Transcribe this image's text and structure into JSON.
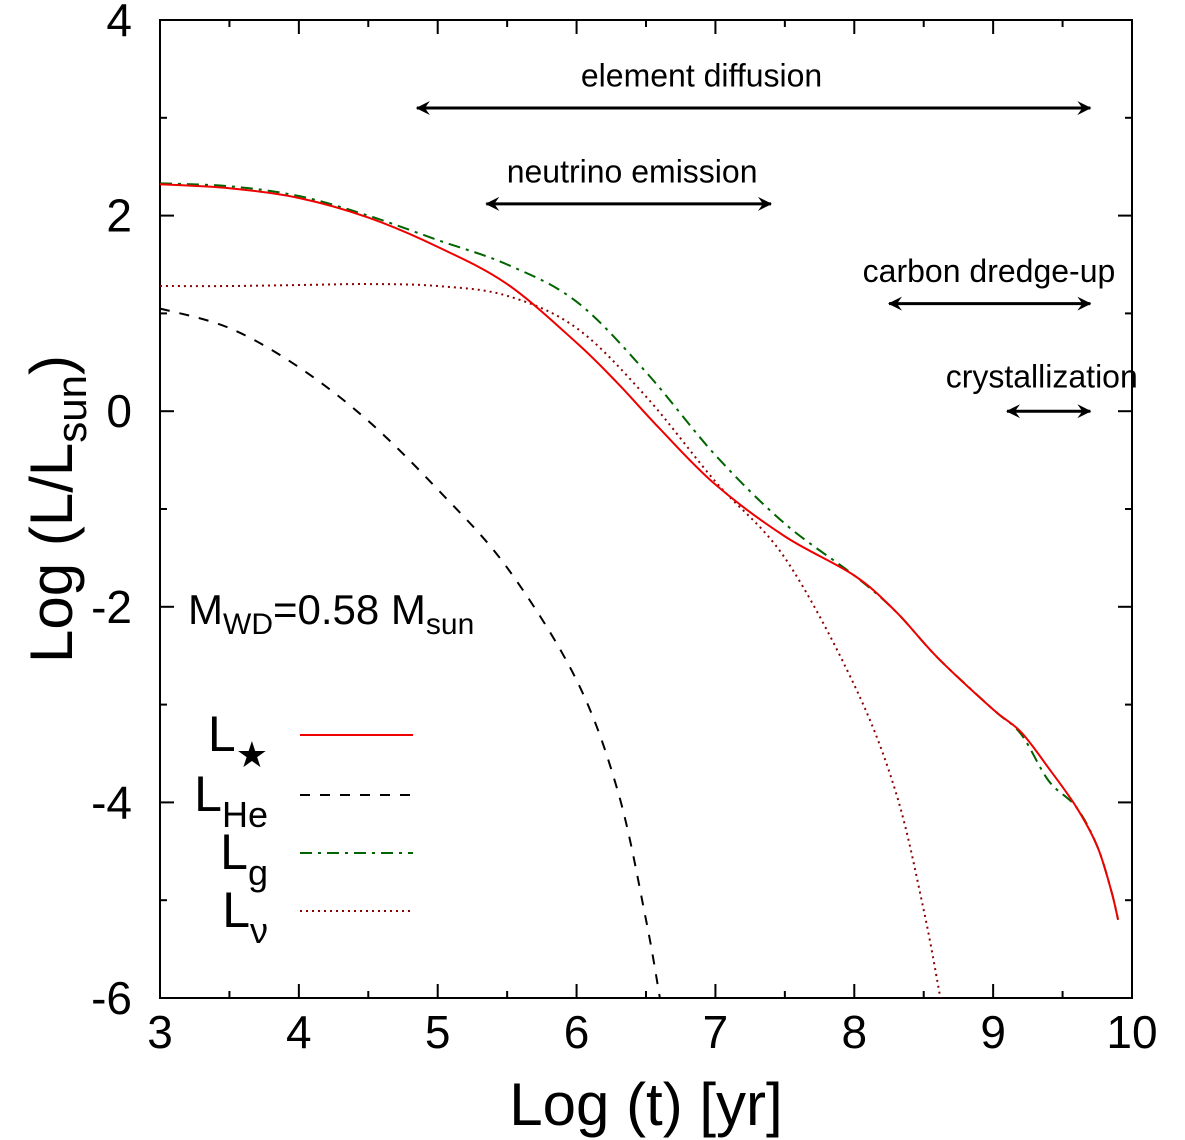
{
  "chart_data": {
    "type": "line",
    "xlabel": "Log (t) [yr]",
    "ylabel": {
      "main": "Log (L/L",
      "sub": "sun",
      "close": ")"
    },
    "xlim": [
      3,
      10
    ],
    "ylim": [
      -6,
      4
    ],
    "xticks": [
      "3",
      "4",
      "5",
      "6",
      "7",
      "8",
      "9",
      "10"
    ],
    "yticks": [
      "-6",
      "-4",
      "-2",
      "0",
      "2",
      "4"
    ],
    "grid": false,
    "legend_position": "bottom-left",
    "mass_label": {
      "m": "M",
      "wd": "WD",
      "value": "=0.58 M",
      "sun": "sun"
    },
    "series": [
      {
        "name": "L",
        "name_sub": "★",
        "color": "#ee0000",
        "style": "solid",
        "points": [
          [
            3,
            2.32
          ],
          [
            3.5,
            2.28
          ],
          [
            4,
            2.18
          ],
          [
            4.5,
            1.98
          ],
          [
            5,
            1.68
          ],
          [
            5.5,
            1.3
          ],
          [
            6,
            0.7
          ],
          [
            6.3,
            0.28
          ],
          [
            6.6,
            -0.18
          ],
          [
            7,
            -0.75
          ],
          [
            7.5,
            -1.28
          ],
          [
            8,
            -1.68
          ],
          [
            8.3,
            -2.05
          ],
          [
            8.6,
            -2.52
          ],
          [
            9,
            -3.05
          ],
          [
            9.2,
            -3.28
          ],
          [
            9.4,
            -3.65
          ],
          [
            9.6,
            -4.05
          ],
          [
            9.75,
            -4.45
          ],
          [
            9.85,
            -4.9
          ],
          [
            9.9,
            -5.2
          ]
        ]
      },
      {
        "name": "L",
        "name_sub": "He",
        "color": "#000000",
        "style": "dashed",
        "points": [
          [
            3,
            1.05
          ],
          [
            3.5,
            0.85
          ],
          [
            4,
            0.45
          ],
          [
            4.5,
            -0.1
          ],
          [
            5,
            -0.8
          ],
          [
            5.5,
            -1.6
          ],
          [
            6,
            -2.75
          ],
          [
            6.3,
            -3.9
          ],
          [
            6.5,
            -5.2
          ],
          [
            6.6,
            -6.0
          ]
        ]
      },
      {
        "name": "L",
        "name_sub": "g",
        "color": "#006400",
        "style": "dashdot",
        "points": [
          [
            3,
            2.33
          ],
          [
            3.5,
            2.3
          ],
          [
            4,
            2.2
          ],
          [
            4.5,
            2.0
          ],
          [
            5,
            1.75
          ],
          [
            5.5,
            1.5
          ],
          [
            6,
            1.12
          ],
          [
            6.5,
            0.4
          ],
          [
            7,
            -0.45
          ],
          [
            7.5,
            -1.15
          ],
          [
            8,
            -1.68
          ],
          [
            8.3,
            -2.05
          ],
          [
            8.6,
            -2.52
          ],
          [
            9,
            -3.05
          ],
          [
            9.2,
            -3.3
          ],
          [
            9.4,
            -3.78
          ],
          [
            9.6,
            -4.05
          ],
          [
            9.75,
            -4.45
          ],
          [
            9.85,
            -4.9
          ],
          [
            9.9,
            -5.2
          ]
        ]
      },
      {
        "name": "L",
        "name_sub": "ν",
        "color": "#8b0000",
        "style": "dotted",
        "points": [
          [
            3,
            1.28
          ],
          [
            3.5,
            1.28
          ],
          [
            4,
            1.29
          ],
          [
            4.5,
            1.3
          ],
          [
            5,
            1.28
          ],
          [
            5.5,
            1.18
          ],
          [
            6,
            0.85
          ],
          [
            6.5,
            0.15
          ],
          [
            7,
            -0.72
          ],
          [
            7.5,
            -1.5
          ],
          [
            8,
            -2.8
          ],
          [
            8.3,
            -3.9
          ],
          [
            8.5,
            -5.1
          ],
          [
            8.62,
            -6.0
          ]
        ]
      }
    ],
    "annotations": [
      {
        "text": "element diffusion",
        "x_from": 4.85,
        "x_to": 9.7,
        "y": 3.1,
        "label_x": 6.9,
        "label_y": 3.32
      },
      {
        "text": "neutrino emission",
        "x_from": 5.35,
        "x_to": 7.4,
        "y": 2.12,
        "label_x": 6.4,
        "label_y": 2.34
      },
      {
        "text": "carbon dredge-up",
        "x_from": 8.25,
        "x_to": 9.7,
        "y": 1.1,
        "label_x": 8.97,
        "label_y": 1.32
      },
      {
        "text": "crystallization",
        "x_from": 9.1,
        "x_to": 9.7,
        "y": 0.0,
        "label_x": 9.35,
        "label_y": 0.24
      }
    ]
  }
}
